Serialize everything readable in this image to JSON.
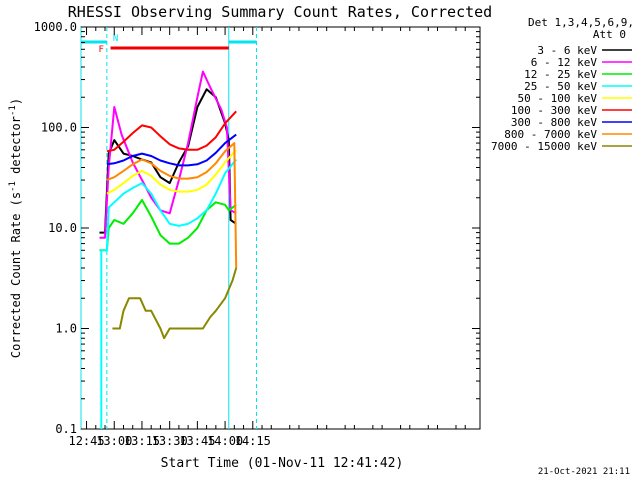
{
  "chart_data": {
    "type": "line",
    "title": "RHESSI Observing Summary Count Rates, Corrected",
    "xlabel": "Start Time (01-Nov-11 12:41:42)",
    "ylabel_main": "Corrected Count Rate (s",
    "ylabel_sup1": "-1",
    "ylabel_mid": " detector",
    "ylabel_sup2": "-1",
    "ylabel_end": ")",
    "yscale": "log",
    "ylim": [
      0.1,
      1000
    ],
    "xlim_minutes": [
      12.7,
      16.3
    ],
    "x_ticks": [
      "12:45",
      "13:00",
      "13:15",
      "13:30",
      "13:45",
      "14:00",
      "14:15"
    ],
    "y_ticks": [
      "1000.0",
      "100.0",
      "10.0",
      "1.0",
      "0.1"
    ],
    "timestamp": "21-Oct-2021 21:11",
    "legend": {
      "header1": "Det 1,3,4,5,6,9,",
      "header2": "Att 0",
      "placement": "right"
    },
    "flags": {
      "night": [
        {
          "start": "12:41",
          "end": "12:56",
          "label": "N"
        },
        {
          "start": "14:02",
          "end": "14:17",
          "label": ""
        }
      ],
      "flare": {
        "start": "12:58",
        "end": "14:02",
        "label": "F"
      }
    },
    "series": [
      {
        "name": "3 - 6 keV",
        "color": "#000000",
        "points": [
          [
            "12:52",
            9
          ],
          [
            "12:55",
            9
          ],
          [
            "12:57",
            55
          ],
          [
            "13:00",
            75
          ],
          [
            "13:05",
            55
          ],
          [
            "13:10",
            52
          ],
          [
            "13:15",
            48
          ],
          [
            "13:20",
            45
          ],
          [
            "13:25",
            32
          ],
          [
            "13:30",
            28
          ],
          [
            "13:35",
            45
          ],
          [
            "13:40",
            65
          ],
          [
            "13:45",
            160
          ],
          [
            "13:50",
            240
          ],
          [
            "13:55",
            200
          ],
          [
            "14:00",
            110
          ],
          [
            "14:02",
            75
          ],
          [
            "14:03",
            12
          ],
          [
            "14:06",
            11
          ]
        ]
      },
      {
        "name": "6 - 12 keV",
        "color": "#ff00ff",
        "points": [
          [
            "12:52",
            8
          ],
          [
            "12:55",
            8
          ],
          [
            "12:57",
            40
          ],
          [
            "13:00",
            160
          ],
          [
            "13:04",
            85
          ],
          [
            "13:10",
            45
          ],
          [
            "13:15",
            30
          ],
          [
            "13:20",
            20
          ],
          [
            "13:25",
            15
          ],
          [
            "13:30",
            14
          ],
          [
            "13:35",
            30
          ],
          [
            "13:40",
            70
          ],
          [
            "13:45",
            200
          ],
          [
            "13:48",
            360
          ],
          [
            "13:52",
            250
          ],
          [
            "13:58",
            150
          ],
          [
            "14:01",
            100
          ],
          [
            "14:03",
            15
          ],
          [
            "14:06",
            14
          ]
        ]
      },
      {
        "name": "12 - 25 keV",
        "color": "#00ee00",
        "points": [
          [
            "12:52",
            6
          ],
          [
            "12:56",
            6
          ],
          [
            "12:57",
            10
          ],
          [
            "13:00",
            12
          ],
          [
            "13:05",
            11
          ],
          [
            "13:10",
            14
          ],
          [
            "13:15",
            19
          ],
          [
            "13:20",
            13
          ],
          [
            "13:25",
            8.5
          ],
          [
            "13:30",
            7
          ],
          [
            "13:35",
            7
          ],
          [
            "13:40",
            8
          ],
          [
            "13:45",
            10
          ],
          [
            "13:50",
            15
          ],
          [
            "13:55",
            18
          ],
          [
            "14:00",
            17
          ],
          [
            "14:02",
            15
          ],
          [
            "14:06",
            17
          ]
        ]
      },
      {
        "name": "25 - 50 keV",
        "color": "#00ffff",
        "points": [
          [
            "12:53",
            0.1
          ],
          [
            "12:53",
            6
          ],
          [
            "12:56",
            6
          ],
          [
            "12:57",
            16
          ],
          [
            "13:00",
            18
          ],
          [
            "13:05",
            22
          ],
          [
            "13:10",
            25
          ],
          [
            "13:15",
            28
          ],
          [
            "13:20",
            22
          ],
          [
            "13:25",
            15
          ],
          [
            "13:30",
            11
          ],
          [
            "13:35",
            10.5
          ],
          [
            "13:40",
            11
          ],
          [
            "13:45",
            12.5
          ],
          [
            "13:50",
            15
          ],
          [
            "13:55",
            22
          ],
          [
            "14:00",
            35
          ],
          [
            "14:06",
            48
          ]
        ]
      },
      {
        "name": "50 - 100 keV",
        "color": "#ffff00",
        "points": [
          [
            "12:56",
            22
          ],
          [
            "13:00",
            24
          ],
          [
            "13:05",
            28
          ],
          [
            "13:10",
            33
          ],
          [
            "13:15",
            37
          ],
          [
            "13:20",
            33
          ],
          [
            "13:25",
            27
          ],
          [
            "13:30",
            24
          ],
          [
            "13:35",
            23
          ],
          [
            "13:40",
            23
          ],
          [
            "13:45",
            24
          ],
          [
            "13:50",
            27
          ],
          [
            "13:55",
            34
          ],
          [
            "14:00",
            45
          ],
          [
            "14:06",
            60
          ]
        ]
      },
      {
        "name": "100 - 300 keV",
        "color": "#ff0000",
        "points": [
          [
            "12:56",
            58
          ],
          [
            "13:00",
            60
          ],
          [
            "13:05",
            72
          ],
          [
            "13:10",
            88
          ],
          [
            "13:15",
            105
          ],
          [
            "13:20",
            100
          ],
          [
            "13:25",
            82
          ],
          [
            "13:30",
            68
          ],
          [
            "13:35",
            62
          ],
          [
            "13:40",
            60
          ],
          [
            "13:45",
            60
          ],
          [
            "13:50",
            66
          ],
          [
            "13:55",
            80
          ],
          [
            "14:00",
            110
          ],
          [
            "14:06",
            145
          ]
        ]
      },
      {
        "name": "300 - 800 keV",
        "color": "#0000ff",
        "points": [
          [
            "12:56",
            43
          ],
          [
            "13:00",
            44
          ],
          [
            "13:05",
            47
          ],
          [
            "13:10",
            52
          ],
          [
            "13:15",
            55
          ],
          [
            "13:20",
            52
          ],
          [
            "13:25",
            47
          ],
          [
            "13:30",
            44
          ],
          [
            "13:35",
            42
          ],
          [
            "13:40",
            42
          ],
          [
            "13:45",
            43
          ],
          [
            "13:50",
            47
          ],
          [
            "13:55",
            56
          ],
          [
            "14:00",
            70
          ],
          [
            "14:06",
            85
          ]
        ]
      },
      {
        "name": "800 - 7000 keV",
        "color": "#ff8800",
        "points": [
          [
            "12:56",
            30
          ],
          [
            "13:00",
            32
          ],
          [
            "13:05",
            37
          ],
          [
            "13:10",
            43
          ],
          [
            "13:15",
            48
          ],
          [
            "13:20",
            44
          ],
          [
            "13:25",
            37
          ],
          [
            "13:30",
            33
          ],
          [
            "13:35",
            31
          ],
          [
            "13:40",
            31
          ],
          [
            "13:45",
            32
          ],
          [
            "13:50",
            36
          ],
          [
            "13:55",
            44
          ],
          [
            "14:00",
            58
          ],
          [
            "14:05",
            70
          ],
          [
            "14:06",
            4
          ]
        ]
      },
      {
        "name": "7000 - 15000 keV",
        "color": "#888800",
        "points": [
          [
            "12:59",
            1
          ],
          [
            "13:03",
            1
          ],
          [
            "13:05",
            1.5
          ],
          [
            "13:08",
            2
          ],
          [
            "13:14",
            2
          ],
          [
            "13:17",
            1.5
          ],
          [
            "13:20",
            1.5
          ],
          [
            "13:25",
            1
          ],
          [
            "13:27",
            0.8
          ],
          [
            "13:30",
            1
          ],
          [
            "13:35",
            1
          ],
          [
            "13:40",
            1
          ],
          [
            "13:48",
            1
          ],
          [
            "13:52",
            1.3
          ],
          [
            "13:55",
            1.5
          ],
          [
            "14:00",
            2
          ],
          [
            "14:04",
            3
          ],
          [
            "14:06",
            4
          ]
        ]
      }
    ]
  }
}
